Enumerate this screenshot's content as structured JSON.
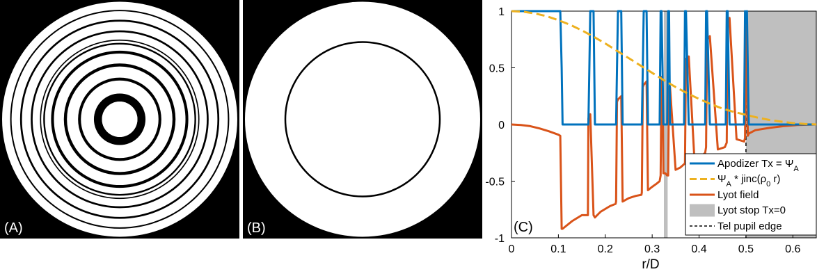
{
  "panel_a": {
    "label": "(A)",
    "ring_boundaries": [
      0.075,
      0.109,
      0.164,
      0.176,
      0.223,
      0.236,
      0.278,
      0.29,
      0.316,
      0.323,
      0.332,
      0.337,
      0.368,
      0.376,
      0.413,
      0.421,
      0.457,
      0.463,
      0.497,
      0.505
    ]
  },
  "panel_b": {
    "label": "(B)",
    "lyot_stop_radius_rD": 0.33
  },
  "chart_data": {
    "type": "line",
    "label": "(C)",
    "xlabel": "r/D",
    "ylabel": "",
    "xlim": [
      0,
      0.65
    ],
    "ylim": [
      -1,
      1
    ],
    "x_ticks": [
      0,
      0.1,
      0.2,
      0.3,
      0.4,
      0.5,
      0.6
    ],
    "x_tick_labels": [
      "0",
      "0.1",
      "0.2",
      "0.3",
      "0.4",
      "0.5",
      "0.6"
    ],
    "y_ticks": [
      -1,
      -0.5,
      0,
      0.5,
      1
    ],
    "y_tick_labels": [
      "-1",
      "-0.5",
      "0",
      "0.5",
      "1"
    ],
    "grid": false,
    "legend_position": "bottom-right",
    "colors": {
      "apodizer": "#0072bd",
      "psi": "#edb120",
      "lyot_field": "#d95319",
      "stop": "#bfbfbf"
    },
    "series": [
      {
        "name": "Apodizer Tx = ",
        "name_symbol": "Ψ",
        "name_sub": "A",
        "color": "#0072bd",
        "style": "solid",
        "x": [
          0,
          0.104,
          0.107,
          0.109,
          0.164,
          0.166,
          0.168,
          0.175,
          0.178,
          0.223,
          0.225,
          0.227,
          0.234,
          0.237,
          0.278,
          0.28,
          0.282,
          0.288,
          0.291,
          0.316,
          0.318,
          0.32,
          0.322,
          0.324,
          0.332,
          0.334,
          0.336,
          0.338,
          0.368,
          0.37,
          0.372,
          0.375,
          0.378,
          0.413,
          0.415,
          0.417,
          0.42,
          0.423,
          0.457,
          0.459,
          0.461,
          0.463,
          0.465,
          0.496,
          0.498,
          0.5,
          0.502,
          0.504,
          0.506,
          0.65
        ],
        "y": [
          1,
          1,
          0.5,
          0,
          0,
          0.5,
          1,
          1,
          0,
          0,
          0.5,
          1,
          1,
          0,
          0,
          0.5,
          1,
          1,
          0,
          0,
          1,
          1,
          0.5,
          0,
          0,
          1,
          1,
          0,
          0,
          1,
          1,
          0.5,
          0,
          0,
          1,
          1,
          0.5,
          0,
          0,
          1,
          1,
          0.5,
          0,
          0,
          1,
          0.9,
          1,
          0.5,
          0,
          0
        ]
      },
      {
        "name": " * jinc(",
        "name_symbol": "Ψ",
        "name_sub": "A",
        "name_suffix_symbol": "ρ",
        "name_suffix_sub": "0",
        "name_suffix": " r)",
        "color": "#edb120",
        "style": "dashed",
        "x": [
          0,
          0.025,
          0.05,
          0.075,
          0.1,
          0.125,
          0.15,
          0.175,
          0.2,
          0.225,
          0.25,
          0.275,
          0.3,
          0.325,
          0.35,
          0.375,
          0.4,
          0.425,
          0.45,
          0.475,
          0.5,
          0.525,
          0.55,
          0.575,
          0.6,
          0.625,
          0.65
        ],
        "y": [
          1.0,
          0.995,
          0.98,
          0.955,
          0.92,
          0.88,
          0.83,
          0.775,
          0.715,
          0.65,
          0.585,
          0.52,
          0.455,
          0.39,
          0.33,
          0.275,
          0.225,
          0.18,
          0.14,
          0.11,
          0.085,
          0.06,
          0.04,
          0.025,
          0.012,
          0.005,
          0.0
        ]
      },
      {
        "name": "Lyot field",
        "color": "#d95319",
        "style": "solid",
        "x": [
          0,
          0.02,
          0.04,
          0.06,
          0.08,
          0.1,
          0.104,
          0.107,
          0.109,
          0.13,
          0.15,
          0.163,
          0.164,
          0.166,
          0.168,
          0.175,
          0.178,
          0.19,
          0.21,
          0.222,
          0.223,
          0.225,
          0.227,
          0.234,
          0.237,
          0.25,
          0.265,
          0.277,
          0.278,
          0.28,
          0.282,
          0.288,
          0.291,
          0.3,
          0.31,
          0.316,
          0.318,
          0.32,
          0.322,
          0.324,
          0.328,
          0.332,
          0.334,
          0.336,
          0.338,
          0.35,
          0.36,
          0.368,
          0.37,
          0.372,
          0.375,
          0.378,
          0.39,
          0.405,
          0.413,
          0.415,
          0.417,
          0.42,
          0.423,
          0.44,
          0.455,
          0.457,
          0.459,
          0.461,
          0.463,
          0.465,
          0.48,
          0.496,
          0.498,
          0.5,
          0.502,
          0.504,
          0.506,
          0.52,
          0.55,
          0.58,
          0.61,
          0.65
        ],
        "y": [
          0,
          -0.004,
          -0.015,
          -0.035,
          -0.06,
          -0.09,
          -0.1,
          -0.92,
          -0.92,
          -0.85,
          -0.8,
          -0.8,
          0.05,
          0.08,
          0.09,
          -0.8,
          -0.82,
          -0.77,
          -0.72,
          -0.7,
          -0.68,
          0.2,
          0.22,
          0.25,
          -0.68,
          -0.65,
          -0.63,
          -0.62,
          -0.6,
          0.33,
          0.35,
          0.38,
          -0.58,
          -0.55,
          -0.52,
          -0.5,
          -0.45,
          0.42,
          0.42,
          -0.43,
          -0.43,
          -0.45,
          -0.45,
          0.33,
          0.33,
          -0.4,
          -0.38,
          -0.35,
          -0.34,
          0.58,
          0.58,
          0.6,
          -0.3,
          -0.28,
          -0.25,
          -0.2,
          0.76,
          0.76,
          0.78,
          -0.22,
          -0.2,
          -0.18,
          -0.16,
          0.92,
          0.92,
          0.94,
          -0.13,
          -0.15,
          -0.12,
          0.98,
          0.6,
          -0.1,
          -0.08,
          -0.05,
          -0.03,
          -0.015,
          -0.005,
          0.0
        ]
      }
    ],
    "lyot_stop_band": {
      "name": "Lyot stop Tx=0",
      "x_ranges": [
        [
          0.325,
          0.333
        ],
        [
          0.5,
          0.65
        ]
      ],
      "color": "#bfbfbf"
    },
    "pupil_edge": {
      "name": "Tel pupil edge",
      "x": 0.5,
      "color": "#000000",
      "style": "dashed"
    }
  }
}
